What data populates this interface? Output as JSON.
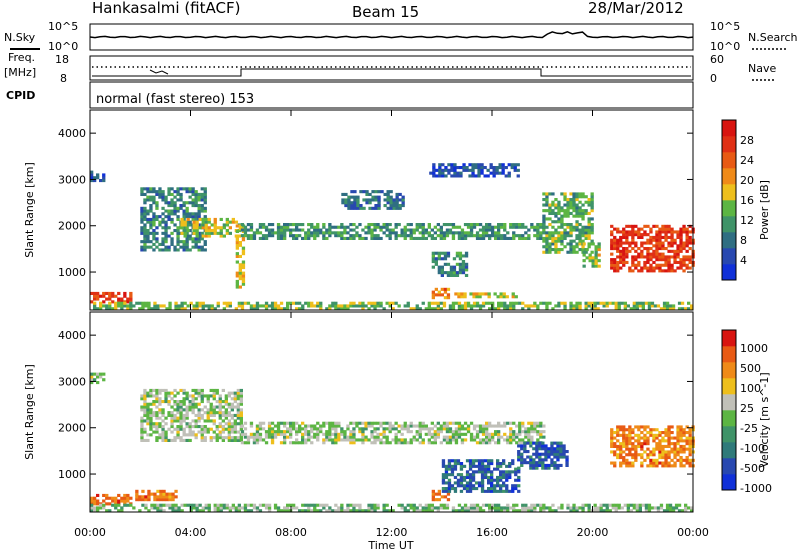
{
  "header": {
    "title": "Hankasalmi (fitACF)",
    "beam": "Beam 15",
    "date": "28/Mar/2012"
  },
  "status_panels": {
    "nsky_label": "N.Sky",
    "nsearch_label": "N.Search",
    "noise_ticks_left": [
      "10^5",
      "10^0"
    ],
    "noise_ticks_right": [
      "10^5",
      "10^0"
    ],
    "freq_label": "Freq.",
    "freq_unit": "[MHz]",
    "freq_ticks": [
      "18",
      "8"
    ],
    "nave_label": "Nave",
    "nave_ticks": [
      "60",
      "0"
    ],
    "cpid_label": "CPID",
    "cpid_text": "normal (fast stereo) 153"
  },
  "x_axis": {
    "label": "Time UT",
    "ticks": [
      "00:00",
      "04:00",
      "08:00",
      "12:00",
      "16:00",
      "20:00",
      "00:00"
    ]
  },
  "chart_data": [
    {
      "type": "heatmap",
      "parameter": "power",
      "ylabel": "Slant Range [km]",
      "yticks": [
        1000,
        2000,
        3000,
        4000
      ],
      "ylim": [
        180,
        4500
      ],
      "xlim_hours": [
        0,
        24
      ],
      "colorbar": {
        "label": "Power [dB]",
        "ticks": [
          "4",
          "8",
          "12",
          "16",
          "20",
          "24",
          "28"
        ],
        "colors": [
          "#1030d8",
          "#2848b0",
          "#2f6e82",
          "#3f9368",
          "#5cb543",
          "#eebf1c",
          "#ef8a18",
          "#e85a14",
          "#e03015",
          "#d81410"
        ]
      },
      "regions": [
        {
          "t0": 0.0,
          "t1": 1.6,
          "r0": 330,
          "r1": 560,
          "level": 0.85
        },
        {
          "t0": 0.0,
          "t1": 0.6,
          "r0": 2950,
          "r1": 3180,
          "level": 0.2
        },
        {
          "t0": 2.0,
          "t1": 4.6,
          "r0": 1450,
          "r1": 2800,
          "level": 0.3,
          "slope": -1
        },
        {
          "t0": 3.6,
          "t1": 6.0,
          "r0": 1750,
          "r1": 2150,
          "level": 0.5
        },
        {
          "t0": 5.8,
          "t1": 6.1,
          "r0": 650,
          "r1": 2000,
          "level": 0.55
        },
        {
          "t0": 6.0,
          "t1": 18.0,
          "r0": 1700,
          "r1": 2050,
          "level": 0.35
        },
        {
          "t0": 10.0,
          "t1": 12.5,
          "r0": 2350,
          "r1": 2750,
          "level": 0.25
        },
        {
          "t0": 13.5,
          "t1": 17.0,
          "r0": 3050,
          "r1": 3300,
          "level": 0.15
        },
        {
          "t0": 13.6,
          "t1": 15.0,
          "r0": 900,
          "r1": 1400,
          "level": 0.3
        },
        {
          "t0": 13.6,
          "t1": 14.2,
          "r0": 420,
          "r1": 650,
          "level": 0.7
        },
        {
          "t0": 14.5,
          "t1": 17.0,
          "r0": 440,
          "r1": 560,
          "level": 0.55
        },
        {
          "t0": 18.0,
          "t1": 20.0,
          "r0": 1400,
          "r1": 2700,
          "level": 0.4
        },
        {
          "t0": 19.6,
          "t1": 20.3,
          "r0": 1100,
          "r1": 1600,
          "level": 0.5
        },
        {
          "t0": 20.7,
          "t1": 24.0,
          "r0": 1000,
          "r1": 2000,
          "level": 0.85
        },
        {
          "t0": 0.0,
          "t1": 24.0,
          "r0": 180,
          "r1": 330,
          "level": 0.45
        }
      ]
    },
    {
      "type": "heatmap",
      "parameter": "velocity",
      "ylabel": "Slant Range [km]",
      "yticks": [
        1000,
        2000,
        3000,
        4000
      ],
      "ylim": [
        180,
        4500
      ],
      "xlim_hours": [
        0,
        24
      ],
      "colorbar": {
        "label": "Velocity [m s^-1]",
        "ticks": [
          "1000",
          "500",
          "100",
          "25",
          "-25",
          "-100",
          "-500",
          "-1000"
        ],
        "colors": [
          "#1030d8",
          "#2848b0",
          "#2f7a7a",
          "#3f9368",
          "#5cb543",
          "#c0c0b8",
          "#eebf1c",
          "#ef8a18",
          "#e85a14",
          "#d81410"
        ]
      },
      "regions": [
        {
          "t0": 0.0,
          "t1": 0.6,
          "r0": 2950,
          "r1": 3180,
          "level": 0.5
        },
        {
          "t0": 2.0,
          "t1": 6.0,
          "r0": 1700,
          "r1": 2800,
          "level": 0.5
        },
        {
          "t0": 6.0,
          "t1": 18.0,
          "r0": 1650,
          "r1": 2100,
          "level": 0.5
        },
        {
          "t0": 0.0,
          "t1": 1.6,
          "r0": 330,
          "r1": 560,
          "level": 0.82
        },
        {
          "t0": 1.8,
          "t1": 3.4,
          "r0": 420,
          "r1": 620,
          "level": 0.8
        },
        {
          "t0": 13.6,
          "t1": 14.2,
          "r0": 420,
          "r1": 650,
          "level": 0.8
        },
        {
          "t0": 14.0,
          "t1": 17.0,
          "r0": 600,
          "r1": 1300,
          "level": 0.2
        },
        {
          "t0": 17.0,
          "t1": 19.0,
          "r0": 1100,
          "r1": 1700,
          "level": 0.2
        },
        {
          "t0": 20.7,
          "t1": 24.0,
          "r0": 1150,
          "r1": 2000,
          "level": 0.78
        },
        {
          "t0": 0.0,
          "t1": 24.0,
          "r0": 180,
          "r1": 330,
          "level": 0.45
        }
      ]
    }
  ]
}
